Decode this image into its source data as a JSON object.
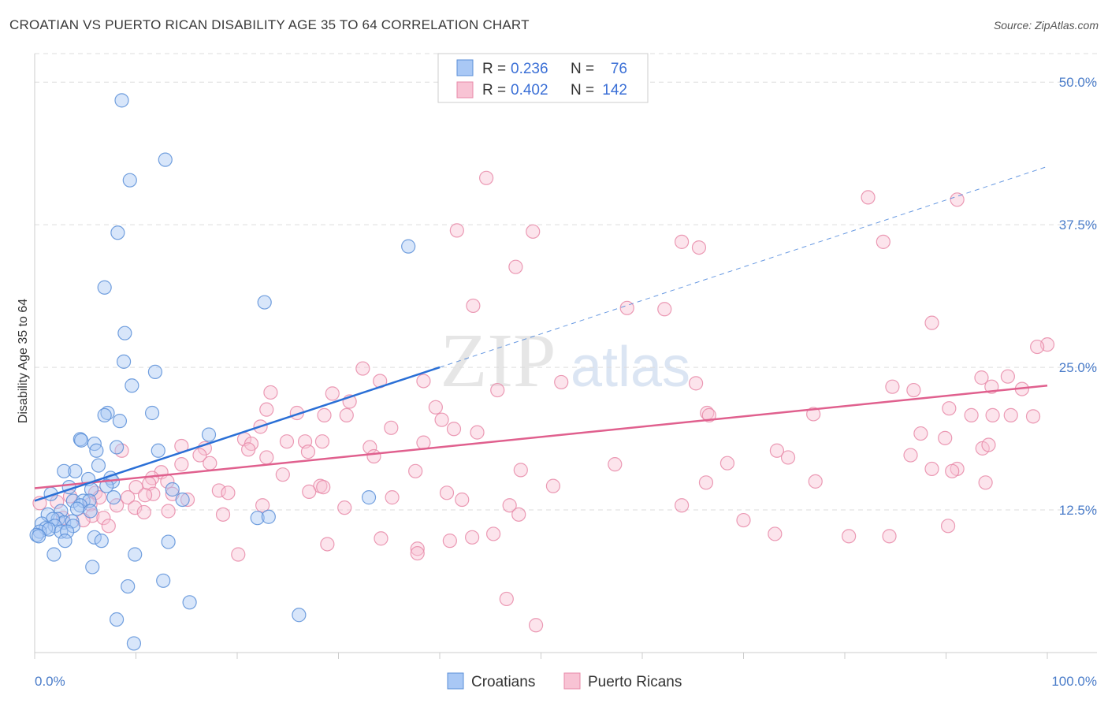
{
  "title": "CROATIAN VS PUERTO RICAN DISABILITY AGE 35 TO 64 CORRELATION CHART",
  "source": "Source: ZipAtlas.com",
  "watermark": {
    "zip": "ZIP",
    "atlas": "atlas"
  },
  "colors": {
    "blue_fill": "#a9c8f5",
    "blue_stroke": "#5b8fd8",
    "blue_line": "#2a6fd6",
    "pink_fill": "#f8c3d4",
    "pink_stroke": "#e88aa8",
    "pink_line": "#e0608e",
    "tick_blue": "#4a7cc9",
    "grid": "#dddddd"
  },
  "legend": {
    "r_label": "R =",
    "n_label": "N =",
    "rows": [
      {
        "series": "Croatians",
        "r": "0.236",
        "n": "76"
      },
      {
        "series": "Puerto Ricans",
        "r": "0.402",
        "n": "142"
      }
    ]
  },
  "bottom_legend": [
    "Croatians",
    "Puerto Ricans"
  ],
  "chart_data": {
    "type": "scatter",
    "title": "CROATIAN VS PUERTO RICAN DISABILITY AGE 35 TO 64 CORRELATION CHART",
    "xlabel": "",
    "ylabel": "Disability Age 35 to 64",
    "xlim": [
      0,
      100
    ],
    "ylim": [
      0,
      52.5
    ],
    "y_ticks": [
      12.5,
      25.0,
      37.5,
      50.0
    ],
    "y_tick_labels": [
      "12.5%",
      "25.0%",
      "37.5%",
      "50.0%"
    ],
    "x_tick_labels": [
      "0.0%",
      "100.0%"
    ],
    "series": [
      {
        "name": "Croatians",
        "color": "blue",
        "r": 0.236,
        "n": 76,
        "trend": {
          "x0": 0,
          "y0": 13.3,
          "x1": 40,
          "y1": 25.0,
          "dashed_to_x": 100,
          "dashed_to_y": 42.6
        },
        "points": [
          [
            8.6,
            48.4
          ],
          [
            12.9,
            43.2
          ],
          [
            9.4,
            41.4
          ],
          [
            8.2,
            36.8
          ],
          [
            36.9,
            35.6
          ],
          [
            6.9,
            32.0
          ],
          [
            22.7,
            30.7
          ],
          [
            8.9,
            28.0
          ],
          [
            8.8,
            25.5
          ],
          [
            11.9,
            24.6
          ],
          [
            9.6,
            23.4
          ],
          [
            7.2,
            21.0
          ],
          [
            6.9,
            20.8
          ],
          [
            11.6,
            21.0
          ],
          [
            8.4,
            20.3
          ],
          [
            17.2,
            19.1
          ],
          [
            4.5,
            18.7
          ],
          [
            4.6,
            18.6
          ],
          [
            5.9,
            18.3
          ],
          [
            6.1,
            17.7
          ],
          [
            8.1,
            18.0
          ],
          [
            12.2,
            17.7
          ],
          [
            6.3,
            16.4
          ],
          [
            2.9,
            15.9
          ],
          [
            4.0,
            15.9
          ],
          [
            5.3,
            15.2
          ],
          [
            7.5,
            15.3
          ],
          [
            7.7,
            15.0
          ],
          [
            7.1,
            14.6
          ],
          [
            3.4,
            14.5
          ],
          [
            5.6,
            14.3
          ],
          [
            13.6,
            14.3
          ],
          [
            1.6,
            13.9
          ],
          [
            7.8,
            13.6
          ],
          [
            3.8,
            13.3
          ],
          [
            4.8,
            13.3
          ],
          [
            5.4,
            13.3
          ],
          [
            14.6,
            13.4
          ],
          [
            4.5,
            12.9
          ],
          [
            4.2,
            12.6
          ],
          [
            2.6,
            12.4
          ],
          [
            5.5,
            12.4
          ],
          [
            33.0,
            13.6
          ],
          [
            22.0,
            11.8
          ],
          [
            23.1,
            11.9
          ],
          [
            1.3,
            12.1
          ],
          [
            2.3,
            11.7
          ],
          [
            2.9,
            11.4
          ],
          [
            3.7,
            11.5
          ],
          [
            1.8,
            11.7
          ],
          [
            0.7,
            11.3
          ],
          [
            2.0,
            11.1
          ],
          [
            3.8,
            11.1
          ],
          [
            1.1,
            10.9
          ],
          [
            0.5,
            10.6
          ],
          [
            1.4,
            10.8
          ],
          [
            2.6,
            10.6
          ],
          [
            3.2,
            10.6
          ],
          [
            0.2,
            10.3
          ],
          [
            0.4,
            10.2
          ],
          [
            3.0,
            9.8
          ],
          [
            5.9,
            10.1
          ],
          [
            6.6,
            9.8
          ],
          [
            13.2,
            9.7
          ],
          [
            9.9,
            8.6
          ],
          [
            1.9,
            8.6
          ],
          [
            5.7,
            7.5
          ],
          [
            12.7,
            6.3
          ],
          [
            9.2,
            5.8
          ],
          [
            15.3,
            4.4
          ],
          [
            26.1,
            3.3
          ],
          [
            8.1,
            2.9
          ],
          [
            9.8,
            0.8
          ]
        ]
      },
      {
        "name": "Puerto Ricans",
        "color": "pink",
        "r": 0.402,
        "n": 142,
        "trend": {
          "x0": 0,
          "y0": 14.4,
          "x1": 100,
          "y1": 23.4
        },
        "points": [
          [
            44.6,
            41.6
          ],
          [
            82.3,
            39.9
          ],
          [
            91.1,
            39.7
          ],
          [
            41.7,
            37.0
          ],
          [
            49.2,
            36.9
          ],
          [
            63.9,
            36.0
          ],
          [
            83.8,
            36.0
          ],
          [
            65.6,
            35.5
          ],
          [
            47.5,
            33.8
          ],
          [
            43.3,
            30.4
          ],
          [
            58.5,
            30.2
          ],
          [
            62.2,
            30.1
          ],
          [
            88.6,
            28.9
          ],
          [
            100,
            27.0
          ],
          [
            99.0,
            26.8
          ],
          [
            32.4,
            24.9
          ],
          [
            96.1,
            24.2
          ],
          [
            93.5,
            24.1
          ],
          [
            34.1,
            23.8
          ],
          [
            38.4,
            23.8
          ],
          [
            52.0,
            23.7
          ],
          [
            65.3,
            23.6
          ],
          [
            84.7,
            23.3
          ],
          [
            97.5,
            23.1
          ],
          [
            94.5,
            23.3
          ],
          [
            45.7,
            23.0
          ],
          [
            86.8,
            23.0
          ],
          [
            23.3,
            22.8
          ],
          [
            29.4,
            22.7
          ],
          [
            31.1,
            22.0
          ],
          [
            39.6,
            21.5
          ],
          [
            90.3,
            21.4
          ],
          [
            22.9,
            21.3
          ],
          [
            25.9,
            21.0
          ],
          [
            28.6,
            20.8
          ],
          [
            30.8,
            20.8
          ],
          [
            66.4,
            21.0
          ],
          [
            66.6,
            20.8
          ],
          [
            76.9,
            20.9
          ],
          [
            92.5,
            20.8
          ],
          [
            94.6,
            20.8
          ],
          [
            98.6,
            20.7
          ],
          [
            96.4,
            20.8
          ],
          [
            40.2,
            20.4
          ],
          [
            22.3,
            19.8
          ],
          [
            35.2,
            19.7
          ],
          [
            41.4,
            19.6
          ],
          [
            43.7,
            19.3
          ],
          [
            87.5,
            19.2
          ],
          [
            24.9,
            18.5
          ],
          [
            26.7,
            18.5
          ],
          [
            20.7,
            18.7
          ],
          [
            21.4,
            18.3
          ],
          [
            28.4,
            18.5
          ],
          [
            38.4,
            18.4
          ],
          [
            89.9,
            18.8
          ],
          [
            14.5,
            18.1
          ],
          [
            16.8,
            17.9
          ],
          [
            33.1,
            18.0
          ],
          [
            21.1,
            17.8
          ],
          [
            27.0,
            17.6
          ],
          [
            33.5,
            17.2
          ],
          [
            73.3,
            17.7
          ],
          [
            86.5,
            17.3
          ],
          [
            93.6,
            17.9
          ],
          [
            94.2,
            18.2
          ],
          [
            8.6,
            17.7
          ],
          [
            16.3,
            17.3
          ],
          [
            22.9,
            17.1
          ],
          [
            74.4,
            17.1
          ],
          [
            14.5,
            16.5
          ],
          [
            17.3,
            16.6
          ],
          [
            57.3,
            16.5
          ],
          [
            68.4,
            16.6
          ],
          [
            37.6,
            15.9
          ],
          [
            48.0,
            16.0
          ],
          [
            88.6,
            16.1
          ],
          [
            91.1,
            16.1
          ],
          [
            90.6,
            15.9
          ],
          [
            12.5,
            15.8
          ],
          [
            24.5,
            15.6
          ],
          [
            11.6,
            15.3
          ],
          [
            13.1,
            15.0
          ],
          [
            28.2,
            14.6
          ],
          [
            51.2,
            14.6
          ],
          [
            66.3,
            14.9
          ],
          [
            77.1,
            15.0
          ],
          [
            93.9,
            14.9
          ],
          [
            11.3,
            14.8
          ],
          [
            10.0,
            14.5
          ],
          [
            18.2,
            14.2
          ],
          [
            28.5,
            14.5
          ],
          [
            6.0,
            14.0
          ],
          [
            11.7,
            13.9
          ],
          [
            13.6,
            13.9
          ],
          [
            19.1,
            14.0
          ],
          [
            27.1,
            14.1
          ],
          [
            40.7,
            14.0
          ],
          [
            3.5,
            13.7
          ],
          [
            6.4,
            13.6
          ],
          [
            9.2,
            13.6
          ],
          [
            10.9,
            13.8
          ],
          [
            15.1,
            13.4
          ],
          [
            35.3,
            13.6
          ],
          [
            42.2,
            13.4
          ],
          [
            0.5,
            13.1
          ],
          [
            2.2,
            13.2
          ],
          [
            5.5,
            13.0
          ],
          [
            8.1,
            12.9
          ],
          [
            9.9,
            12.7
          ],
          [
            22.5,
            12.9
          ],
          [
            30.6,
            12.7
          ],
          [
            46.9,
            12.9
          ],
          [
            63.9,
            12.9
          ],
          [
            10.8,
            12.3
          ],
          [
            13.2,
            12.4
          ],
          [
            5.7,
            12.0
          ],
          [
            18.6,
            12.1
          ],
          [
            47.8,
            12.1
          ],
          [
            2.8,
            11.8
          ],
          [
            6.8,
            11.8
          ],
          [
            4.8,
            11.6
          ],
          [
            70.0,
            11.6
          ],
          [
            90.2,
            11.1
          ],
          [
            7.3,
            11.1
          ],
          [
            45.3,
            10.4
          ],
          [
            73.1,
            10.4
          ],
          [
            84.4,
            10.2
          ],
          [
            34.2,
            10.0
          ],
          [
            43.2,
            10.1
          ],
          [
            80.4,
            10.2
          ],
          [
            37.8,
            9.1
          ],
          [
            20.1,
            8.6
          ],
          [
            41.0,
            9.8
          ],
          [
            28.9,
            9.5
          ],
          [
            37.8,
            8.7
          ],
          [
            46.6,
            4.7
          ],
          [
            49.5,
            2.4
          ]
        ]
      }
    ]
  }
}
